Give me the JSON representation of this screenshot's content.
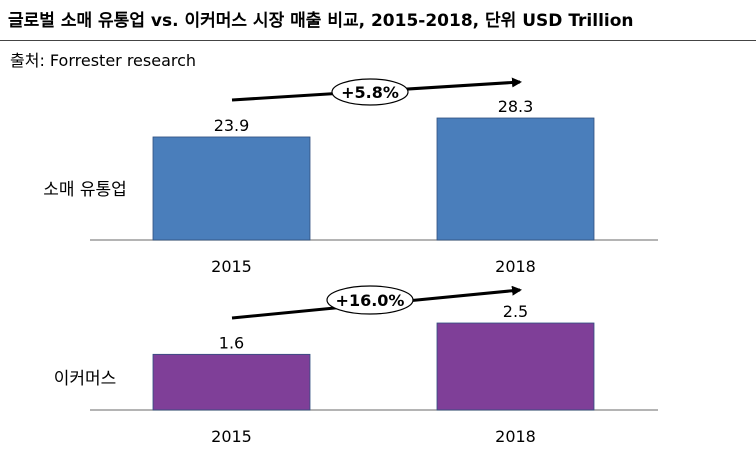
{
  "title": "글로벌 소매 유통업 vs. 이커머스 시장 매출 비교, 2015-2018, 단위 USD Trillion",
  "source": "출처: Forrester research",
  "chart_data": [
    {
      "type": "bar",
      "series_label": "소매 유통업",
      "categories": [
        "2015",
        "2018"
      ],
      "values": [
        23.9,
        28.3
      ],
      "value_labels": [
        "23.9",
        "28.3"
      ],
      "growth_label": "+5.8%",
      "color": "#4a7ebb"
    },
    {
      "type": "bar",
      "series_label": "이커머스",
      "categories": [
        "2015",
        "2018"
      ],
      "values": [
        1.6,
        2.5
      ],
      "value_labels": [
        "1.6",
        "2.5"
      ],
      "growth_label": "+16.0%",
      "color": "#7f3f98"
    }
  ]
}
